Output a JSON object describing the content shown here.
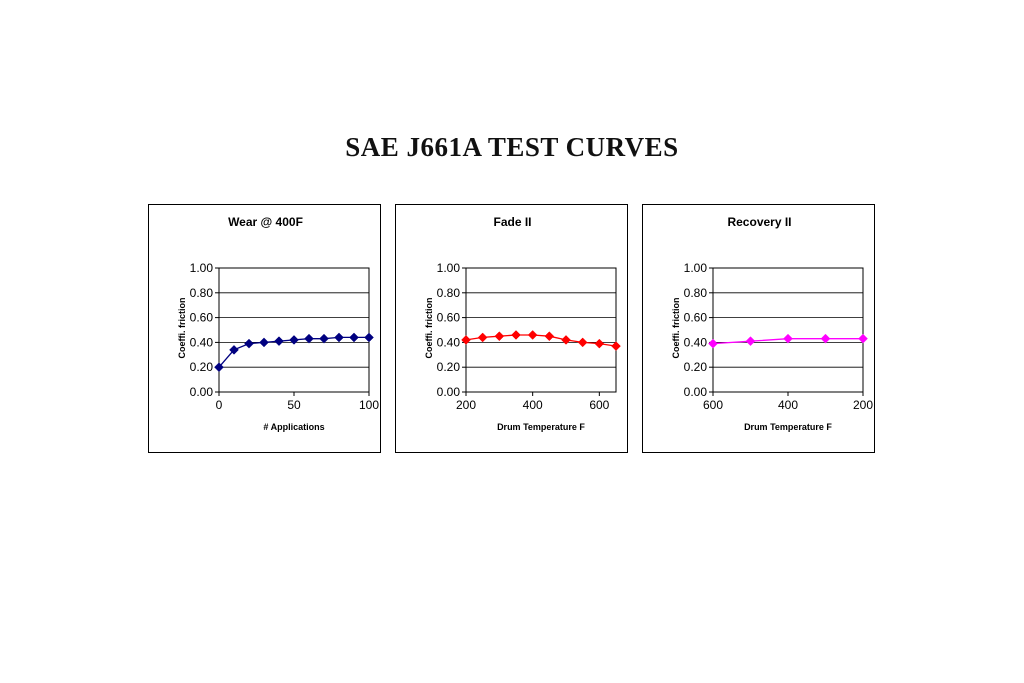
{
  "page": {
    "title": "SAE J661A TEST CURVES"
  },
  "chart_data": [
    {
      "type": "line",
      "title": "Wear @ 400F",
      "xlabel": "# Applications",
      "ylabel": "Coeffi. friction",
      "xlim": [
        0,
        100
      ],
      "ylim": [
        0,
        1
      ],
      "xticks": [
        0,
        50,
        100
      ],
      "xtick_labels": [
        "0",
        "50",
        "100"
      ],
      "yticks": [
        0,
        0.2,
        0.4,
        0.6,
        0.8,
        1.0
      ],
      "ytick_labels": [
        "0.00",
        "0.20",
        "0.40",
        "0.60",
        "0.80",
        "1.00"
      ],
      "grid": true,
      "color": "#000080",
      "marker": "diamond",
      "series": [
        {
          "x": [
            0,
            10,
            20,
            30,
            40,
            50,
            60,
            70,
            80,
            90,
            100
          ],
          "values": [
            0.2,
            0.34,
            0.39,
            0.4,
            0.41,
            0.42,
            0.43,
            0.43,
            0.44,
            0.44,
            0.44
          ]
        }
      ]
    },
    {
      "type": "line",
      "title": "Fade II",
      "xlabel": "Drum Temperature F",
      "ylabel": "Coeffi. friction",
      "xlim": [
        200,
        650
      ],
      "ylim": [
        0,
        1
      ],
      "xticks": [
        200,
        400,
        600
      ],
      "xtick_labels": [
        "200",
        "400",
        "600"
      ],
      "yticks": [
        0,
        0.2,
        0.4,
        0.6,
        0.8,
        1.0
      ],
      "ytick_labels": [
        "0.00",
        "0.20",
        "0.40",
        "0.60",
        "0.80",
        "1.00"
      ],
      "grid": true,
      "color": "#ff0000",
      "marker": "diamond",
      "series": [
        {
          "x": [
            200,
            250,
            300,
            350,
            400,
            450,
            500,
            550,
            600,
            650
          ],
          "values": [
            0.42,
            0.44,
            0.45,
            0.46,
            0.46,
            0.45,
            0.42,
            0.4,
            0.39,
            0.37
          ]
        }
      ]
    },
    {
      "type": "line",
      "title": "Recovery II",
      "xlabel": "Drum Temperature F",
      "ylabel": "Coeffi. friction",
      "xlim": [
        600,
        200
      ],
      "ylim": [
        0,
        1
      ],
      "x_reversed": true,
      "xticks": [
        600,
        400,
        200
      ],
      "xtick_labels": [
        "600",
        "400",
        "200"
      ],
      "yticks": [
        0,
        0.2,
        0.4,
        0.6,
        0.8,
        1.0
      ],
      "ytick_labels": [
        "0.00",
        "0.20",
        "0.40",
        "0.60",
        "0.80",
        "1.00"
      ],
      "grid": true,
      "color": "#ff00ff",
      "marker": "diamond",
      "series": [
        {
          "x": [
            600,
            500,
            400,
            300,
            200
          ],
          "values": [
            0.39,
            0.41,
            0.43,
            0.43,
            0.43
          ]
        }
      ]
    }
  ]
}
